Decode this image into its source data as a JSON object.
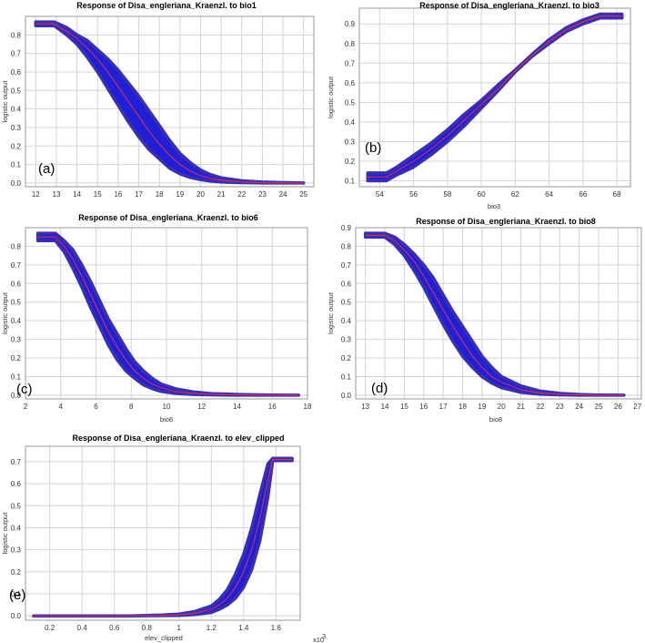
{
  "figure": {
    "ylabel": "logistic output",
    "band_color": "#1f1fd6",
    "band_edge_color": "#3a2fb0",
    "mean_color": "#e8304a"
  },
  "chart_data": [
    {
      "type": "area",
      "panel_label": "(a)",
      "title": "Response of Disa_engleriana_Kraenzl. to bio1",
      "xlabel": "",
      "ylabel": "logistic output",
      "xlim": [
        11.5,
        25.5
      ],
      "ylim": [
        -0.02,
        0.9
      ],
      "xticks": [
        12,
        13,
        14,
        15,
        16,
        17,
        18,
        19,
        20,
        21,
        22,
        23,
        24,
        25
      ],
      "yticks": [
        0.0,
        0.1,
        0.2,
        0.3,
        0.4,
        0.5,
        0.6,
        0.7,
        0.8
      ],
      "x": [
        12,
        12.9,
        13.5,
        14,
        14.5,
        15,
        15.5,
        16,
        16.5,
        17,
        17.5,
        18,
        18.5,
        19,
        19.5,
        20,
        20.5,
        21,
        22,
        23,
        24,
        25
      ],
      "mean": [
        0.86,
        0.86,
        0.82,
        0.78,
        0.73,
        0.67,
        0.6,
        0.52,
        0.44,
        0.36,
        0.28,
        0.21,
        0.15,
        0.1,
        0.065,
        0.04,
        0.025,
        0.015,
        0.006,
        0.002,
        0.001,
        0.0
      ],
      "lower": [
        0.85,
        0.85,
        0.8,
        0.75,
        0.68,
        0.6,
        0.51,
        0.42,
        0.33,
        0.25,
        0.18,
        0.13,
        0.08,
        0.05,
        0.03,
        0.018,
        0.01,
        0.005,
        0.002,
        0.0,
        0.0,
        0.0
      ],
      "upper": [
        0.87,
        0.87,
        0.84,
        0.8,
        0.77,
        0.72,
        0.67,
        0.61,
        0.54,
        0.47,
        0.39,
        0.31,
        0.23,
        0.16,
        0.11,
        0.07,
        0.045,
        0.028,
        0.012,
        0.005,
        0.002,
        0.0
      ]
    },
    {
      "type": "area",
      "panel_label": "(b)",
      "title": "Response of Disa_engleriana_Kraenzl. to bio3",
      "xlabel": "bio3",
      "ylabel": "logistic output",
      "xlim": [
        52.8,
        68.8
      ],
      "ylim": [
        0.07,
        0.98
      ],
      "xticks": [
        54,
        56,
        58,
        60,
        62,
        64,
        66,
        68
      ],
      "yticks": [
        0.1,
        0.2,
        0.3,
        0.4,
        0.5,
        0.6,
        0.7,
        0.8,
        0.9
      ],
      "x": [
        53.3,
        54.4,
        55,
        56,
        57,
        58,
        59,
        60,
        61,
        62,
        63,
        64,
        65,
        66,
        67,
        68.3
      ],
      "mean": [
        0.12,
        0.12,
        0.15,
        0.2,
        0.26,
        0.33,
        0.41,
        0.49,
        0.57,
        0.66,
        0.74,
        0.81,
        0.87,
        0.91,
        0.94,
        0.94
      ],
      "lower": [
        0.1,
        0.1,
        0.13,
        0.17,
        0.23,
        0.3,
        0.38,
        0.47,
        0.56,
        0.655,
        0.735,
        0.8,
        0.86,
        0.9,
        0.93,
        0.93
      ],
      "upper": [
        0.14,
        0.14,
        0.17,
        0.23,
        0.29,
        0.36,
        0.44,
        0.51,
        0.59,
        0.665,
        0.745,
        0.82,
        0.88,
        0.92,
        0.95,
        0.95
      ]
    },
    {
      "type": "area",
      "panel_label": "(c)",
      "title": "Response of Disa_engleriana_Kraenzl. to bio6",
      "xlabel": "bio6",
      "ylabel": "logistic output",
      "xlim": [
        2,
        18
      ],
      "ylim": [
        -0.02,
        0.9
      ],
      "xticks": [
        2,
        4,
        6,
        8,
        10,
        12,
        14,
        16,
        18
      ],
      "yticks": [
        0.0,
        0.1,
        0.2,
        0.3,
        0.4,
        0.5,
        0.6,
        0.7,
        0.8
      ],
      "x": [
        2.7,
        3.7,
        4.2,
        4.7,
        5.2,
        5.7,
        6.2,
        6.7,
        7.2,
        7.7,
        8.2,
        8.7,
        9.2,
        9.7,
        10.5,
        11.5,
        12.5,
        14,
        16,
        17.5
      ],
      "mean": [
        0.85,
        0.85,
        0.8,
        0.73,
        0.64,
        0.54,
        0.44,
        0.34,
        0.26,
        0.19,
        0.13,
        0.09,
        0.06,
        0.04,
        0.02,
        0.01,
        0.005,
        0.002,
        0.0,
        0.0
      ],
      "lower": [
        0.83,
        0.83,
        0.77,
        0.68,
        0.58,
        0.47,
        0.37,
        0.27,
        0.19,
        0.13,
        0.09,
        0.055,
        0.035,
        0.02,
        0.01,
        0.004,
        0.002,
        0.0,
        0.0,
        0.0
      ],
      "upper": [
        0.87,
        0.87,
        0.83,
        0.78,
        0.7,
        0.61,
        0.51,
        0.41,
        0.33,
        0.25,
        0.18,
        0.13,
        0.09,
        0.06,
        0.035,
        0.018,
        0.009,
        0.004,
        0.001,
        0.0
      ]
    },
    {
      "type": "area",
      "panel_label": "(d)",
      "title": "Response of Disa_engleriana_Kraenzl. to bio8",
      "xlabel": "bio8",
      "ylabel": "logistic output",
      "xlim": [
        12.5,
        27.2
      ],
      "ylim": [
        -0.02,
        0.9
      ],
      "xticks": [
        13,
        14,
        15,
        16,
        17,
        18,
        19,
        20,
        21,
        22,
        23,
        24,
        25,
        26,
        27
      ],
      "yticks": [
        0.0,
        0.1,
        0.2,
        0.3,
        0.4,
        0.5,
        0.6,
        0.7,
        0.8,
        0.9
      ],
      "x": [
        13,
        14,
        14.5,
        15,
        15.5,
        16,
        16.5,
        17,
        17.5,
        18,
        18.5,
        19,
        19.5,
        20,
        21,
        22,
        23,
        24,
        25,
        26.3
      ],
      "mean": [
        0.86,
        0.86,
        0.83,
        0.78,
        0.72,
        0.64,
        0.55,
        0.46,
        0.37,
        0.29,
        0.21,
        0.15,
        0.1,
        0.07,
        0.03,
        0.012,
        0.005,
        0.002,
        0.0,
        0.0
      ],
      "lower": [
        0.85,
        0.85,
        0.81,
        0.75,
        0.67,
        0.58,
        0.48,
        0.38,
        0.29,
        0.21,
        0.15,
        0.1,
        0.065,
        0.04,
        0.015,
        0.005,
        0.002,
        0.0,
        0.0,
        0.0
      ],
      "upper": [
        0.87,
        0.87,
        0.85,
        0.81,
        0.76,
        0.7,
        0.63,
        0.54,
        0.45,
        0.37,
        0.29,
        0.21,
        0.15,
        0.1,
        0.05,
        0.022,
        0.01,
        0.004,
        0.001,
        0.0
      ]
    },
    {
      "type": "area",
      "panel_label": "(e)",
      "title": "Response of Disa_engleriana_Kraenzl. to elev_clipped",
      "xlabel": "elev_clipped",
      "ylabel": "logistic output",
      "x_multiplier": "x10",
      "x_multiplier_exp": "3",
      "xlim": [
        0.05,
        1.75
      ],
      "ylim": [
        -0.02,
        0.77
      ],
      "xticks": [
        0.2,
        0.4,
        0.6,
        0.8,
        1.0,
        1.2,
        1.4,
        1.6
      ],
      "yticks": [
        0.0,
        0.1,
        0.2,
        0.3,
        0.4,
        0.5,
        0.6,
        0.7
      ],
      "x": [
        0.1,
        0.4,
        0.7,
        0.9,
        1.0,
        1.1,
        1.2,
        1.25,
        1.3,
        1.35,
        1.4,
        1.45,
        1.5,
        1.55,
        1.58,
        1.7
      ],
      "mean": [
        0.0,
        0.0,
        0.0,
        0.002,
        0.005,
        0.012,
        0.03,
        0.05,
        0.08,
        0.13,
        0.2,
        0.3,
        0.44,
        0.62,
        0.71,
        0.71
      ],
      "lower": [
        0.0,
        0.0,
        0.0,
        0.001,
        0.002,
        0.006,
        0.015,
        0.03,
        0.05,
        0.08,
        0.13,
        0.21,
        0.34,
        0.54,
        0.705,
        0.705
      ],
      "upper": [
        0.0,
        0.0,
        0.0,
        0.004,
        0.008,
        0.02,
        0.045,
        0.075,
        0.12,
        0.19,
        0.28,
        0.4,
        0.55,
        0.69,
        0.715,
        0.715
      ]
    }
  ]
}
